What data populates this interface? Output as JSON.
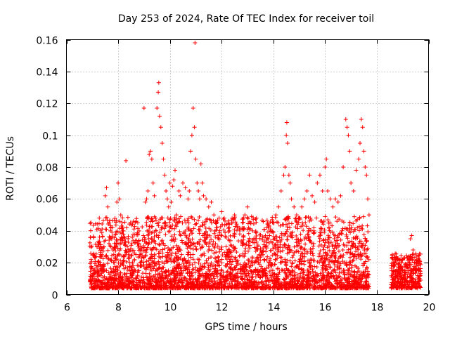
{
  "chart_data": {
    "type": "scatter",
    "title": "Day 253 of 2024, Rate Of TEC Index for receiver toil",
    "xlabel": "GPS time / hours",
    "ylabel": "ROTI / TECUs",
    "xlim": [
      6,
      20
    ],
    "ylim": [
      0,
      0.16
    ],
    "x_ticks": [
      "6",
      "8",
      "10",
      "12",
      "14",
      "16",
      "18",
      "20"
    ],
    "x_tick_values": [
      6,
      8,
      10,
      12,
      14,
      16,
      18,
      20
    ],
    "y_ticks": [
      "0",
      "0.02",
      "0.04",
      "0.06",
      "0.08",
      "0.1",
      "0.12",
      "0.14",
      "0.16"
    ],
    "y_tick_values": [
      0,
      0.02,
      0.04,
      0.06,
      0.08,
      0.1,
      0.12,
      0.14,
      0.16
    ],
    "grid": true,
    "marker": "+",
    "marker_color": "#ff0000",
    "series": [
      {
        "name": "ROTI",
        "points": [
          [
            6.95,
            0.022
          ],
          [
            7.0,
            0.012
          ],
          [
            7.05,
            0.015
          ],
          [
            7.1,
            0.01
          ],
          [
            7.15,
            0.018
          ],
          [
            7.2,
            0.014
          ],
          [
            7.25,
            0.02
          ],
          [
            7.3,
            0.016
          ],
          [
            7.35,
            0.024
          ],
          [
            7.4,
            0.018
          ],
          [
            7.45,
            0.03
          ],
          [
            7.5,
            0.062
          ],
          [
            7.55,
            0.067
          ],
          [
            7.6,
            0.055
          ],
          [
            7.65,
            0.045
          ],
          [
            7.7,
            0.04
          ],
          [
            7.75,
            0.035
          ],
          [
            7.8,
            0.028
          ],
          [
            7.85,
            0.032
          ],
          [
            7.9,
            0.038
          ],
          [
            7.95,
            0.058
          ],
          [
            8.0,
            0.07
          ],
          [
            8.05,
            0.06
          ],
          [
            8.1,
            0.05
          ],
          [
            8.15,
            0.045
          ],
          [
            8.2,
            0.04
          ],
          [
            8.25,
            0.035
          ],
          [
            8.3,
            0.084
          ],
          [
            8.35,
            0.03
          ],
          [
            8.4,
            0.025
          ],
          [
            8.45,
            0.02
          ],
          [
            8.5,
            0.015
          ],
          [
            8.55,
            0.012
          ],
          [
            8.6,
            0.008
          ],
          [
            8.65,
            0.005
          ],
          [
            8.7,
            0.01
          ],
          [
            8.75,
            0.012
          ],
          [
            8.8,
            0.015
          ],
          [
            8.85,
            0.02
          ],
          [
            8.9,
            0.018
          ],
          [
            9.0,
            0.117
          ],
          [
            9.05,
            0.058
          ],
          [
            9.1,
            0.06
          ],
          [
            9.15,
            0.065
          ],
          [
            9.2,
            0.088
          ],
          [
            9.25,
            0.09
          ],
          [
            9.3,
            0.085
          ],
          [
            9.35,
            0.07
          ],
          [
            9.4,
            0.062
          ],
          [
            9.45,
            0.048
          ],
          [
            9.5,
            0.117
          ],
          [
            9.55,
            0.127
          ],
          [
            9.57,
            0.133
          ],
          [
            9.6,
            0.112
          ],
          [
            9.65,
            0.105
          ],
          [
            9.7,
            0.095
          ],
          [
            9.75,
            0.085
          ],
          [
            9.8,
            0.075
          ],
          [
            9.85,
            0.065
          ],
          [
            9.9,
            0.06
          ],
          [
            9.95,
            0.055
          ],
          [
            10.0,
            0.07
          ],
          [
            10.05,
            0.058
          ],
          [
            10.1,
            0.068
          ],
          [
            10.15,
            0.072
          ],
          [
            10.2,
            0.078
          ],
          [
            10.25,
            0.05
          ],
          [
            10.3,
            0.045
          ],
          [
            10.35,
            0.065
          ],
          [
            10.4,
            0.062
          ],
          [
            10.5,
            0.07
          ],
          [
            10.6,
            0.067
          ],
          [
            10.7,
            0.06
          ],
          [
            10.75,
            0.065
          ],
          [
            10.8,
            0.09
          ],
          [
            10.85,
            0.1
          ],
          [
            10.9,
            0.117
          ],
          [
            10.95,
            0.105
          ],
          [
            10.97,
            0.158
          ],
          [
            11.0,
            0.085
          ],
          [
            11.05,
            0.07
          ],
          [
            11.1,
            0.065
          ],
          [
            11.15,
            0.06
          ],
          [
            11.2,
            0.082
          ],
          [
            11.25,
            0.07
          ],
          [
            11.3,
            0.062
          ],
          [
            11.4,
            0.06
          ],
          [
            11.5,
            0.055
          ],
          [
            11.6,
            0.058
          ],
          [
            11.7,
            0.05
          ],
          [
            11.8,
            0.045
          ],
          [
            11.9,
            0.048
          ],
          [
            12.0,
            0.052
          ],
          [
            12.1,
            0.048
          ],
          [
            12.2,
            0.044
          ],
          [
            12.3,
            0.04
          ],
          [
            12.4,
            0.045
          ],
          [
            12.5,
            0.05
          ],
          [
            12.6,
            0.042
          ],
          [
            12.7,
            0.038
          ],
          [
            12.8,
            0.045
          ],
          [
            12.9,
            0.05
          ],
          [
            13.0,
            0.055
          ],
          [
            13.1,
            0.045
          ],
          [
            13.2,
            0.04
          ],
          [
            13.3,
            0.035
          ],
          [
            13.4,
            0.03
          ],
          [
            13.5,
            0.028
          ],
          [
            13.6,
            0.025
          ],
          [
            13.7,
            0.03
          ],
          [
            13.8,
            0.035
          ],
          [
            13.9,
            0.04
          ],
          [
            14.0,
            0.045
          ],
          [
            14.1,
            0.05
          ],
          [
            14.2,
            0.055
          ],
          [
            14.3,
            0.065
          ],
          [
            14.4,
            0.075
          ],
          [
            14.45,
            0.08
          ],
          [
            14.5,
            0.1
          ],
          [
            14.52,
            0.108
          ],
          [
            14.55,
            0.095
          ],
          [
            14.6,
            0.075
          ],
          [
            14.65,
            0.07
          ],
          [
            14.7,
            0.06
          ],
          [
            14.8,
            0.055
          ],
          [
            14.9,
            0.05
          ],
          [
            15.0,
            0.048
          ],
          [
            15.1,
            0.055
          ],
          [
            15.2,
            0.06
          ],
          [
            15.3,
            0.065
          ],
          [
            15.4,
            0.075
          ],
          [
            15.5,
            0.062
          ],
          [
            15.6,
            0.058
          ],
          [
            15.7,
            0.07
          ],
          [
            15.8,
            0.075
          ],
          [
            15.9,
            0.065
          ],
          [
            16.0,
            0.08
          ],
          [
            16.05,
            0.085
          ],
          [
            16.1,
            0.065
          ],
          [
            16.2,
            0.06
          ],
          [
            16.3,
            0.055
          ],
          [
            16.4,
            0.06
          ],
          [
            16.5,
            0.058
          ],
          [
            16.6,
            0.062
          ],
          [
            16.7,
            0.08
          ],
          [
            16.8,
            0.11
          ],
          [
            16.85,
            0.105
          ],
          [
            16.9,
            0.1
          ],
          [
            16.95,
            0.09
          ],
          [
            17.0,
            0.07
          ],
          [
            17.1,
            0.065
          ],
          [
            17.2,
            0.078
          ],
          [
            17.3,
            0.085
          ],
          [
            17.35,
            0.095
          ],
          [
            17.4,
            0.11
          ],
          [
            17.45,
            0.105
          ],
          [
            17.5,
            0.09
          ],
          [
            17.55,
            0.08
          ],
          [
            17.6,
            0.075
          ],
          [
            17.65,
            0.06
          ],
          [
            17.7,
            0.05
          ],
          [
            18.6,
            0.025
          ],
          [
            18.65,
            0.018
          ],
          [
            18.7,
            0.02
          ],
          [
            18.75,
            0.015
          ],
          [
            18.8,
            0.012
          ],
          [
            18.85,
            0.01
          ],
          [
            18.9,
            0.022
          ],
          [
            18.95,
            0.02
          ],
          [
            19.0,
            0.015
          ],
          [
            19.05,
            0.012
          ],
          [
            19.1,
            0.01
          ],
          [
            19.15,
            0.008
          ],
          [
            19.2,
            0.018
          ],
          [
            19.25,
            0.022
          ],
          [
            19.3,
            0.035
          ],
          [
            19.35,
            0.037
          ],
          [
            19.4,
            0.028
          ],
          [
            19.45,
            0.02
          ],
          [
            19.6,
            0.018
          ]
        ]
      }
    ]
  }
}
